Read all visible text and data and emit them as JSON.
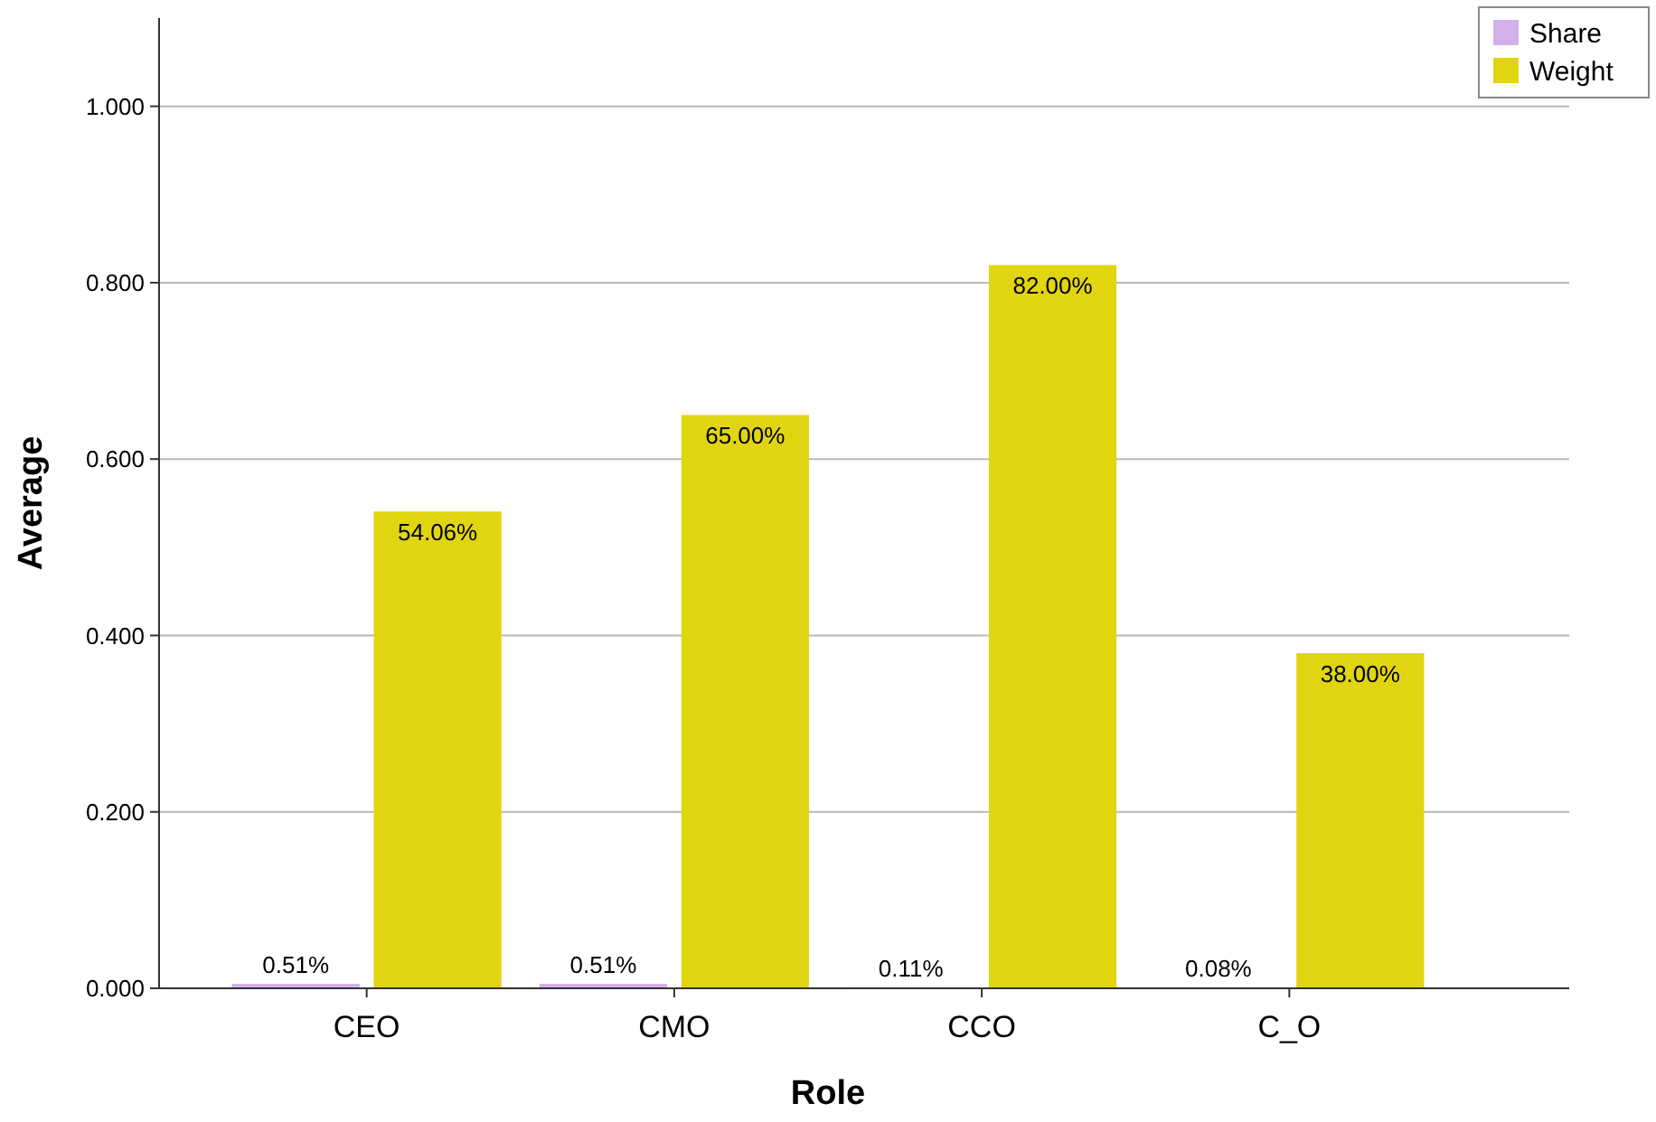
{
  "chart_data": {
    "type": "bar",
    "xlabel": "Role",
    "ylabel": "Average",
    "categories": [
      "CEO",
      "CMO",
      "CCO",
      "C_O"
    ],
    "series": [
      {
        "name": "Share",
        "color": "#d4b0ea",
        "values": [
          0.0051,
          0.0051,
          0.0011,
          0.0008
        ],
        "value_labels": [
          "0.51%",
          "0.51%",
          "0.11%",
          "0.08%"
        ]
      },
      {
        "name": "Weight",
        "color": "#e1d512",
        "values": [
          0.5406,
          0.65,
          0.82,
          0.38
        ],
        "value_labels": [
          "54.06%",
          "65.00%",
          "82.00%",
          "38.00%"
        ]
      }
    ],
    "ylim": [
      0,
      1.1
    ],
    "yticks": [
      {
        "value": 0,
        "label": "0.000"
      },
      {
        "value": 0.2,
        "label": "0.200"
      },
      {
        "value": 0.4,
        "label": "0.400"
      },
      {
        "value": 0.6,
        "label": "0.600"
      },
      {
        "value": 0.8,
        "label": "0.800"
      },
      {
        "value": 1,
        "label": "1.000"
      }
    ],
    "grid": "y",
    "legend": "top right"
  }
}
